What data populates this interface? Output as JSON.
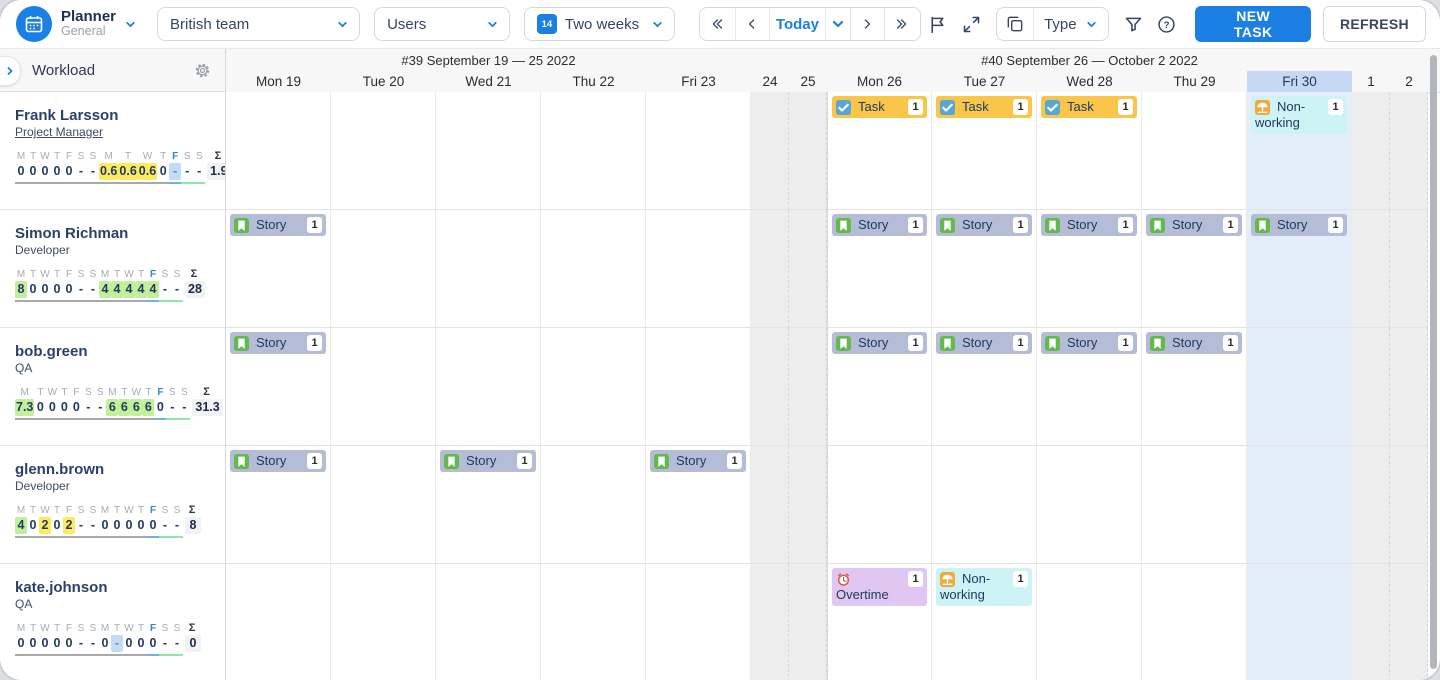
{
  "app": {
    "accent_color": "#1b7fe4",
    "today_column_color": "#e4eefb"
  },
  "toolbar": {
    "logo": {
      "title": "Planner",
      "subtitle": "General"
    },
    "team_select": "British team",
    "users_select": "Users",
    "range_select": "Two weeks",
    "range_icon_number": "14",
    "today_label": "Today",
    "type_label": "Type",
    "new_task_label": "NEW TASK",
    "refresh_label": "REFRESH",
    "icons": [
      "flag-icon",
      "expand-icon",
      "copy-icon",
      "filter-icon",
      "help-icon"
    ]
  },
  "sidebar": {
    "title": "Workload",
    "letters": [
      "M",
      "T",
      "W",
      "T",
      "F",
      "S",
      "S",
      "M",
      "T",
      "W",
      "T",
      "F",
      "S",
      "S",
      "Σ"
    ]
  },
  "calendar": {
    "weeks": [
      {
        "label": "#39 September 19 — 25 2022"
      },
      {
        "label": "#40 September 26 — October 2 2022"
      }
    ],
    "days": [
      {
        "label": "Mon 19",
        "type": "weekday"
      },
      {
        "label": "Tue 20",
        "type": "weekday"
      },
      {
        "label": "Wed 21",
        "type": "weekday"
      },
      {
        "label": "Thu 22",
        "type": "weekday"
      },
      {
        "label": "Fri 23",
        "type": "weekday"
      },
      {
        "label": "24",
        "type": "weekend"
      },
      {
        "label": "25",
        "type": "weekend"
      },
      {
        "label": "Mon 26",
        "type": "weekday"
      },
      {
        "label": "Tue 27",
        "type": "weekday"
      },
      {
        "label": "Wed 28",
        "type": "weekday"
      },
      {
        "label": "Thu 29",
        "type": "weekday"
      },
      {
        "label": "Fri 30",
        "type": "weekday",
        "today": true
      },
      {
        "label": "1",
        "type": "weekend"
      },
      {
        "label": "2",
        "type": "weekend"
      }
    ]
  },
  "chip_types": {
    "task": {
      "label": "Task",
      "glyph": "check",
      "icon": "check-icon",
      "bg": "#f9c64a",
      "icon_bg": "#56a7d8"
    },
    "story": {
      "label": "Story",
      "glyph": "bookmark",
      "icon": "bookmark-icon",
      "bg": "#b4bdd5",
      "icon_bg": "#63b84e"
    },
    "nonworking": {
      "label": "Non-working",
      "glyph": "umbrella",
      "icon": "vacation-icon",
      "bg": "#cdf3f6",
      "icon_bg": "#f2a93b"
    },
    "overtime": {
      "label": "Overtime",
      "glyph": "clock",
      "icon": "overtime-clock-icon",
      "bg": "#e0c7f2",
      "icon_bg": "transparent"
    }
  },
  "highlight_colors": {
    "green": "#c2ef9a",
    "yellow": "#fdeb5f",
    "blue": "#c2dbf6"
  },
  "rows": [
    {
      "name": "Frank Larsson",
      "role": "Project Manager",
      "role_underlined": true,
      "workload": {
        "values": [
          "0",
          "0",
          "0",
          "0",
          "0",
          "-",
          "-",
          "0.6",
          "0.6",
          "0.6",
          "0",
          "-",
          "-",
          "-"
        ],
        "highlights": [
          "",
          "",
          "",
          "",
          "",
          "",
          "",
          "yellow",
          "yellow",
          "yellow",
          "",
          "blue",
          "",
          ""
        ],
        "sum": "1.9"
      },
      "chips": [
        {
          "day": 7,
          "type": "task",
          "count": "1"
        },
        {
          "day": 8,
          "type": "task",
          "count": "1"
        },
        {
          "day": 9,
          "type": "task",
          "count": "1"
        },
        {
          "day": 11,
          "type": "nonworking",
          "count": "1"
        }
      ]
    },
    {
      "name": "Simon Richman",
      "role": "Developer",
      "role_underlined": false,
      "workload": {
        "values": [
          "8",
          "0",
          "0",
          "0",
          "0",
          "-",
          "-",
          "4",
          "4",
          "4",
          "4",
          "4",
          "-",
          "-"
        ],
        "highlights": [
          "green",
          "",
          "",
          "",
          "",
          "",
          "",
          "green",
          "green",
          "green",
          "green",
          "green",
          "",
          ""
        ],
        "sum": "28"
      },
      "chips": [
        {
          "day": 0,
          "type": "story",
          "count": "1"
        },
        {
          "day": 7,
          "type": "story",
          "count": "1"
        },
        {
          "day": 8,
          "type": "story",
          "count": "1"
        },
        {
          "day": 9,
          "type": "story",
          "count": "1"
        },
        {
          "day": 10,
          "type": "story",
          "count": "1"
        },
        {
          "day": 11,
          "type": "story",
          "count": "1"
        }
      ]
    },
    {
      "name": "bob.green",
      "role": "QA",
      "role_underlined": false,
      "workload": {
        "values": [
          "7.3",
          "0",
          "0",
          "0",
          "0",
          "-",
          "-",
          "6",
          "6",
          "6",
          "6",
          "0",
          "-",
          "-"
        ],
        "highlights": [
          "green",
          "",
          "",
          "",
          "",
          "",
          "",
          "green",
          "green",
          "green",
          "green",
          "",
          "",
          ""
        ],
        "sum": "31.3"
      },
      "chips": [
        {
          "day": 0,
          "type": "story",
          "count": "1"
        },
        {
          "day": 7,
          "type": "story",
          "count": "1"
        },
        {
          "day": 8,
          "type": "story",
          "count": "1"
        },
        {
          "day": 9,
          "type": "story",
          "count": "1"
        },
        {
          "day": 10,
          "type": "story",
          "count": "1"
        }
      ]
    },
    {
      "name": "glenn.brown",
      "role": "Developer",
      "role_underlined": false,
      "workload": {
        "values": [
          "4",
          "0",
          "2",
          "0",
          "2",
          "-",
          "-",
          "0",
          "0",
          "0",
          "0",
          "0",
          "-",
          "-"
        ],
        "highlights": [
          "green",
          "",
          "yellow",
          "",
          "yellow",
          "",
          "",
          "",
          "",
          "",
          "",
          "",
          "",
          ""
        ],
        "sum": "8"
      },
      "chips": [
        {
          "day": 0,
          "type": "story",
          "count": "1"
        },
        {
          "day": 2,
          "type": "story",
          "count": "1"
        },
        {
          "day": 4,
          "type": "story",
          "count": "1"
        }
      ]
    },
    {
      "name": "kate.johnson",
      "role": "QA",
      "role_underlined": false,
      "workload": {
        "values": [
          "0",
          "0",
          "0",
          "0",
          "0",
          "-",
          "-",
          "0",
          "-",
          "0",
          "0",
          "0",
          "-",
          "-"
        ],
        "highlights": [
          "",
          "",
          "",
          "",
          "",
          "",
          "",
          "",
          "blue",
          "",
          "",
          "",
          "",
          ""
        ],
        "sum": "0"
      },
      "chips": [
        {
          "day": 7,
          "type": "overtime",
          "count": "1"
        },
        {
          "day": 8,
          "type": "nonworking",
          "count": "1"
        }
      ]
    }
  ]
}
